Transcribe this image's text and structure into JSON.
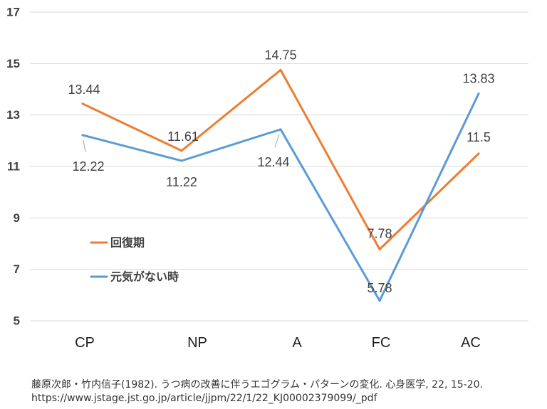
{
  "chart_data": {
    "type": "line",
    "categories": [
      "CP",
      "NP",
      "A",
      "FC",
      "AC"
    ],
    "series": [
      {
        "name": "回復期",
        "values": [
          13.44,
          11.61,
          14.75,
          7.78,
          11.5
        ],
        "color": "#ED7D31"
      },
      {
        "name": "元気がない時",
        "values": [
          12.22,
          11.22,
          12.44,
          5.78,
          13.83
        ],
        "color": "#5B9BD5"
      }
    ],
    "y_ticks": [
      5,
      7,
      9,
      11,
      13,
      15,
      17
    ],
    "ylim": [
      5,
      17
    ],
    "grid": true,
    "data_labels": true,
    "legend_position": "left"
  },
  "citation": {
    "line1": "藤原次郎・竹内信子(1982). うつ病の改善に伴うエゴグラム・パターンの変化. 心身医学, 22, 15-20.",
    "line2": "https://www.jstage.jst.go.jp/article/jjpm/22/1/22_KJ00002379099/_pdf"
  }
}
